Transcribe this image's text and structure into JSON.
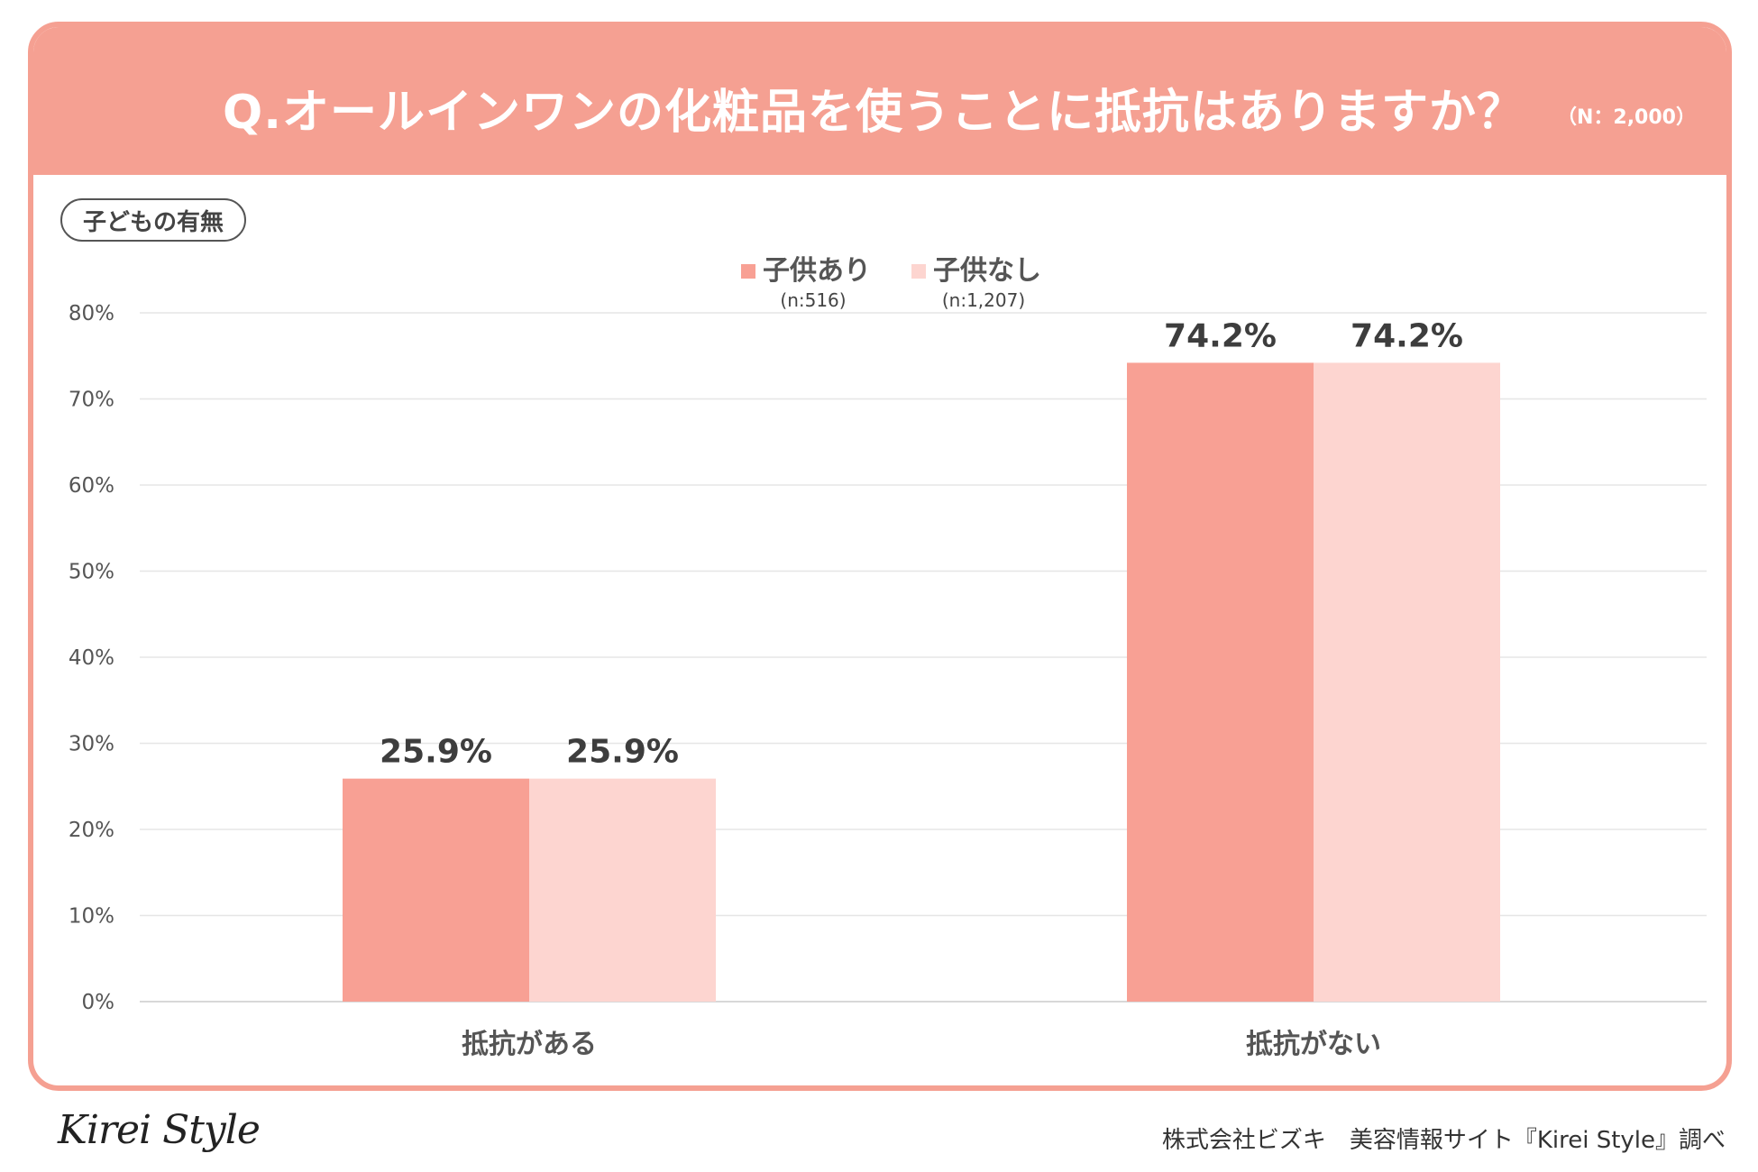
{
  "header": {
    "title": "Q.オールインワンの化粧品を使うことに抵抗はありますか？",
    "sample_size": "（N：2,000）"
  },
  "badge": {
    "label": "子どもの有無"
  },
  "colors": {
    "header_bg": "#f5a092",
    "series_with_children": "#f8a094",
    "series_without_children": "#fdd5d0"
  },
  "chart_data": {
    "type": "bar",
    "title": "Q.オールインワンの化粧品を使うことに抵抗はありますか？",
    "categories": [
      "抵抗がある",
      "抵抗がない"
    ],
    "series": [
      {
        "name": "子供あり",
        "note": "(n:516)",
        "values": [
          25.9,
          74.2
        ],
        "color": "#f8a094"
      },
      {
        "name": "子供なし",
        "note": "(n:1,207)",
        "values": [
          25.9,
          74.2
        ],
        "color": "#fdd5d0"
      }
    ],
    "value_labels": [
      [
        "25.9%",
        "74.2%"
      ],
      [
        "25.9%",
        "74.2%"
      ]
    ],
    "yticks": [
      0,
      10,
      20,
      30,
      40,
      50,
      60,
      70,
      80
    ],
    "ytick_labels": [
      "0%",
      "10%",
      "20%",
      "30%",
      "40%",
      "50%",
      "60%",
      "70%",
      "80%"
    ],
    "ylim": [
      0,
      80
    ],
    "xlabel": "",
    "ylabel": "",
    "grid": true,
    "legend": "top-center"
  },
  "footer": {
    "logo": "Kirei Style",
    "credit": "株式会社ビズキ　美容情報サイト『Kirei Style』調べ"
  }
}
